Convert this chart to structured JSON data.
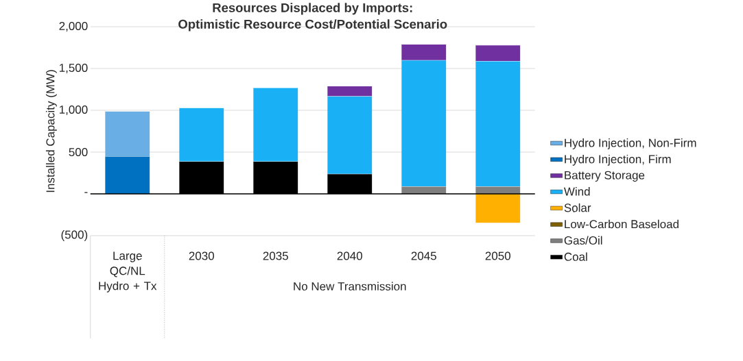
{
  "chart_data": {
    "type": "bar",
    "stacked": true,
    "title": "Resources Displaced by Imports:",
    "subtitle": "Optimistic Resource Cost/Potential Scenario",
    "ylabel": "Installed Capacity (MW)",
    "categories": [
      "Large QC/NL Hydro + Tx",
      "2030",
      "2035",
      "2040",
      "2045",
      "2050"
    ],
    "annotations": [
      "No New Transmission"
    ],
    "ylim": [
      -500,
      2000
    ],
    "yticks": [
      {
        "value": -500,
        "label": "(500)"
      },
      {
        "value": 0,
        "label": "-"
      },
      {
        "value": 500,
        "label": "500"
      },
      {
        "value": 1000,
        "label": "1,000"
      },
      {
        "value": 1500,
        "label": "1,500"
      },
      {
        "value": 2000,
        "label": "2,000"
      }
    ],
    "grid": "y",
    "legend": "right",
    "series": [
      {
        "name": "Coal",
        "color": "#000000",
        "values": [
          null,
          390,
          390,
          240,
          null,
          null
        ]
      },
      {
        "name": "Gas/Oil",
        "color": "#7f7f7f",
        "values": [
          null,
          null,
          null,
          null,
          90,
          90
        ]
      },
      {
        "name": "Low-Carbon Baseload",
        "color": "#7f6000",
        "values": [
          null,
          null,
          null,
          null,
          null,
          null
        ]
      },
      {
        "name": "Solar",
        "color": "#ffb000",
        "values": [
          null,
          null,
          null,
          null,
          null,
          -350
        ]
      },
      {
        "name": "Wind",
        "color": "#19b0f5",
        "values": [
          null,
          640,
          880,
          930,
          1510,
          1500
        ]
      },
      {
        "name": "Battery Storage",
        "color": "#7030a0",
        "values": [
          null,
          null,
          null,
          120,
          190,
          190
        ]
      },
      {
        "name": "Hydro Injection, Firm",
        "color": "#0070c0",
        "values": [
          450,
          null,
          null,
          null,
          null,
          null
        ]
      },
      {
        "name": "Hydro Injection, Non-Firm",
        "color": "#6aaee6",
        "values": [
          540,
          null,
          null,
          null,
          null,
          null
        ]
      }
    ]
  }
}
